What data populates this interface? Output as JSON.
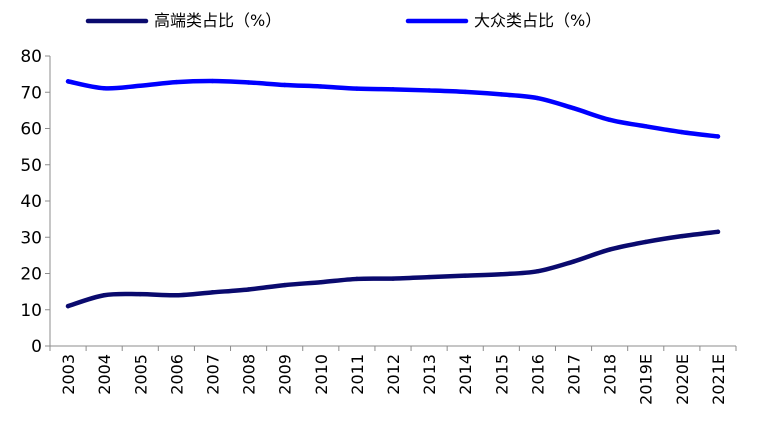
{
  "chart_data": {
    "type": "line",
    "title": "",
    "xlabel": "",
    "ylabel": "",
    "ylim": [
      0,
      80
    ],
    "yticks": [
      "0",
      "10",
      "20",
      "30",
      "40",
      "50",
      "60",
      "70",
      "80"
    ],
    "categories": [
      "2003",
      "2004",
      "2005",
      "2006",
      "2007",
      "2008",
      "2009",
      "2010",
      "2011",
      "2012",
      "2013",
      "2014",
      "2015",
      "2016",
      "2017",
      "2018",
      "2019E",
      "2020E",
      "2021E"
    ],
    "grid": false,
    "legend_position": "top",
    "series": [
      {
        "name": "高端类占比（%）",
        "color": "#0a0a6e",
        "values": [
          11,
          14,
          14.3,
          14,
          14.8,
          15.6,
          16.8,
          17.6,
          18.5,
          18.6,
          19,
          19.4,
          19.8,
          20.6,
          23.3,
          26.6,
          28.7,
          30.3,
          31.5
        ]
      },
      {
        "name": "大众类占比（%）",
        "color": "#0000ff",
        "values": [
          73,
          71.1,
          71.8,
          72.8,
          73.1,
          72.7,
          72,
          71.6,
          71,
          70.8,
          70.5,
          70.1,
          69.4,
          68.4,
          65.6,
          62.4,
          60.6,
          59,
          57.8
        ]
      }
    ]
  }
}
